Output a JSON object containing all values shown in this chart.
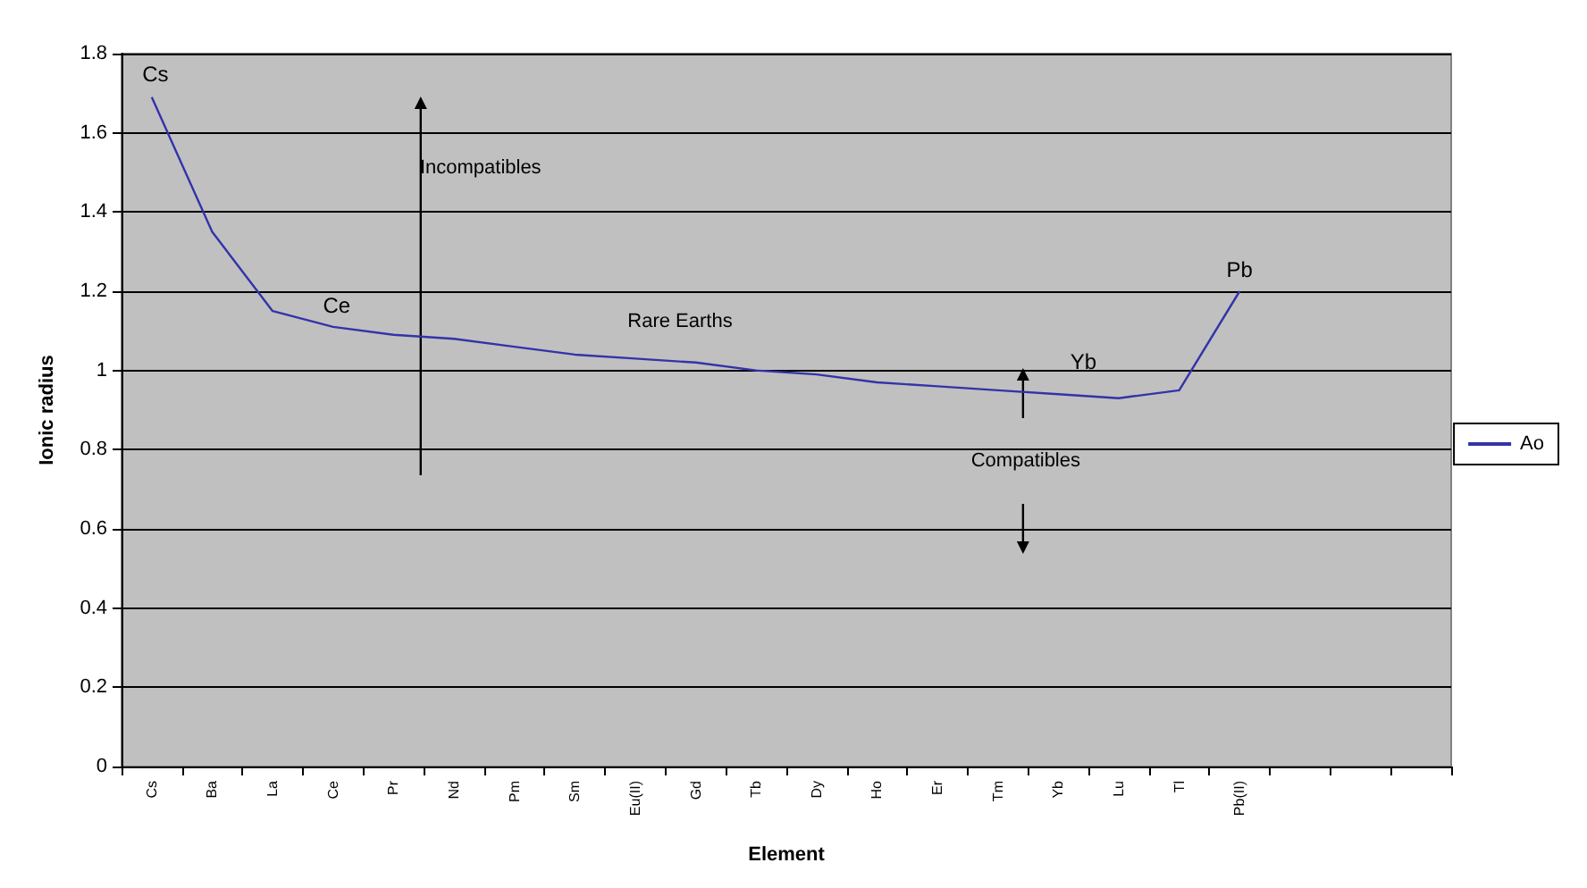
{
  "chart_data": {
    "type": "line",
    "xlabel": "Element",
    "ylabel": "Ionic radius",
    "categories": [
      "Cs",
      "Ba",
      "La",
      "Ce",
      "Pr",
      "Nd",
      "Pm",
      "Sm",
      "Eu(II)",
      "Gd",
      "Tb",
      "Dy",
      "Ho",
      "Er",
      "Tm",
      "Yb",
      "Lu",
      "Tl",
      "Pb(II)",
      null,
      null,
      null
    ],
    "series": [
      {
        "name": "Ao",
        "color": "#3333aa",
        "values": [
          1.69,
          1.35,
          1.15,
          1.11,
          1.09,
          1.08,
          1.06,
          1.04,
          1.03,
          1.02,
          1.0,
          0.99,
          0.97,
          0.96,
          0.95,
          0.94,
          0.93,
          0.95,
          1.2,
          null,
          null,
          null
        ]
      }
    ],
    "ylim": [
      0,
      1.8
    ],
    "yticks": [
      0,
      0.2,
      0.4,
      0.6,
      0.8,
      1,
      1.2,
      1.4,
      1.6,
      1.8
    ],
    "grid": "y",
    "legend": "right",
    "marker": "none",
    "line_style": "solid",
    "annotations": [
      {
        "text": "Cs",
        "x": "Cs",
        "y": 1.69
      },
      {
        "text": "Ce",
        "x": "Ce",
        "y": 1.11
      },
      {
        "text": "Pb",
        "x": "Pb(II)",
        "y": 1.2
      },
      {
        "text": "Yb",
        "x": "Yb",
        "y": 0.94
      },
      "Incompatibles",
      "Rare Earths",
      "Compatibles"
    ]
  }
}
